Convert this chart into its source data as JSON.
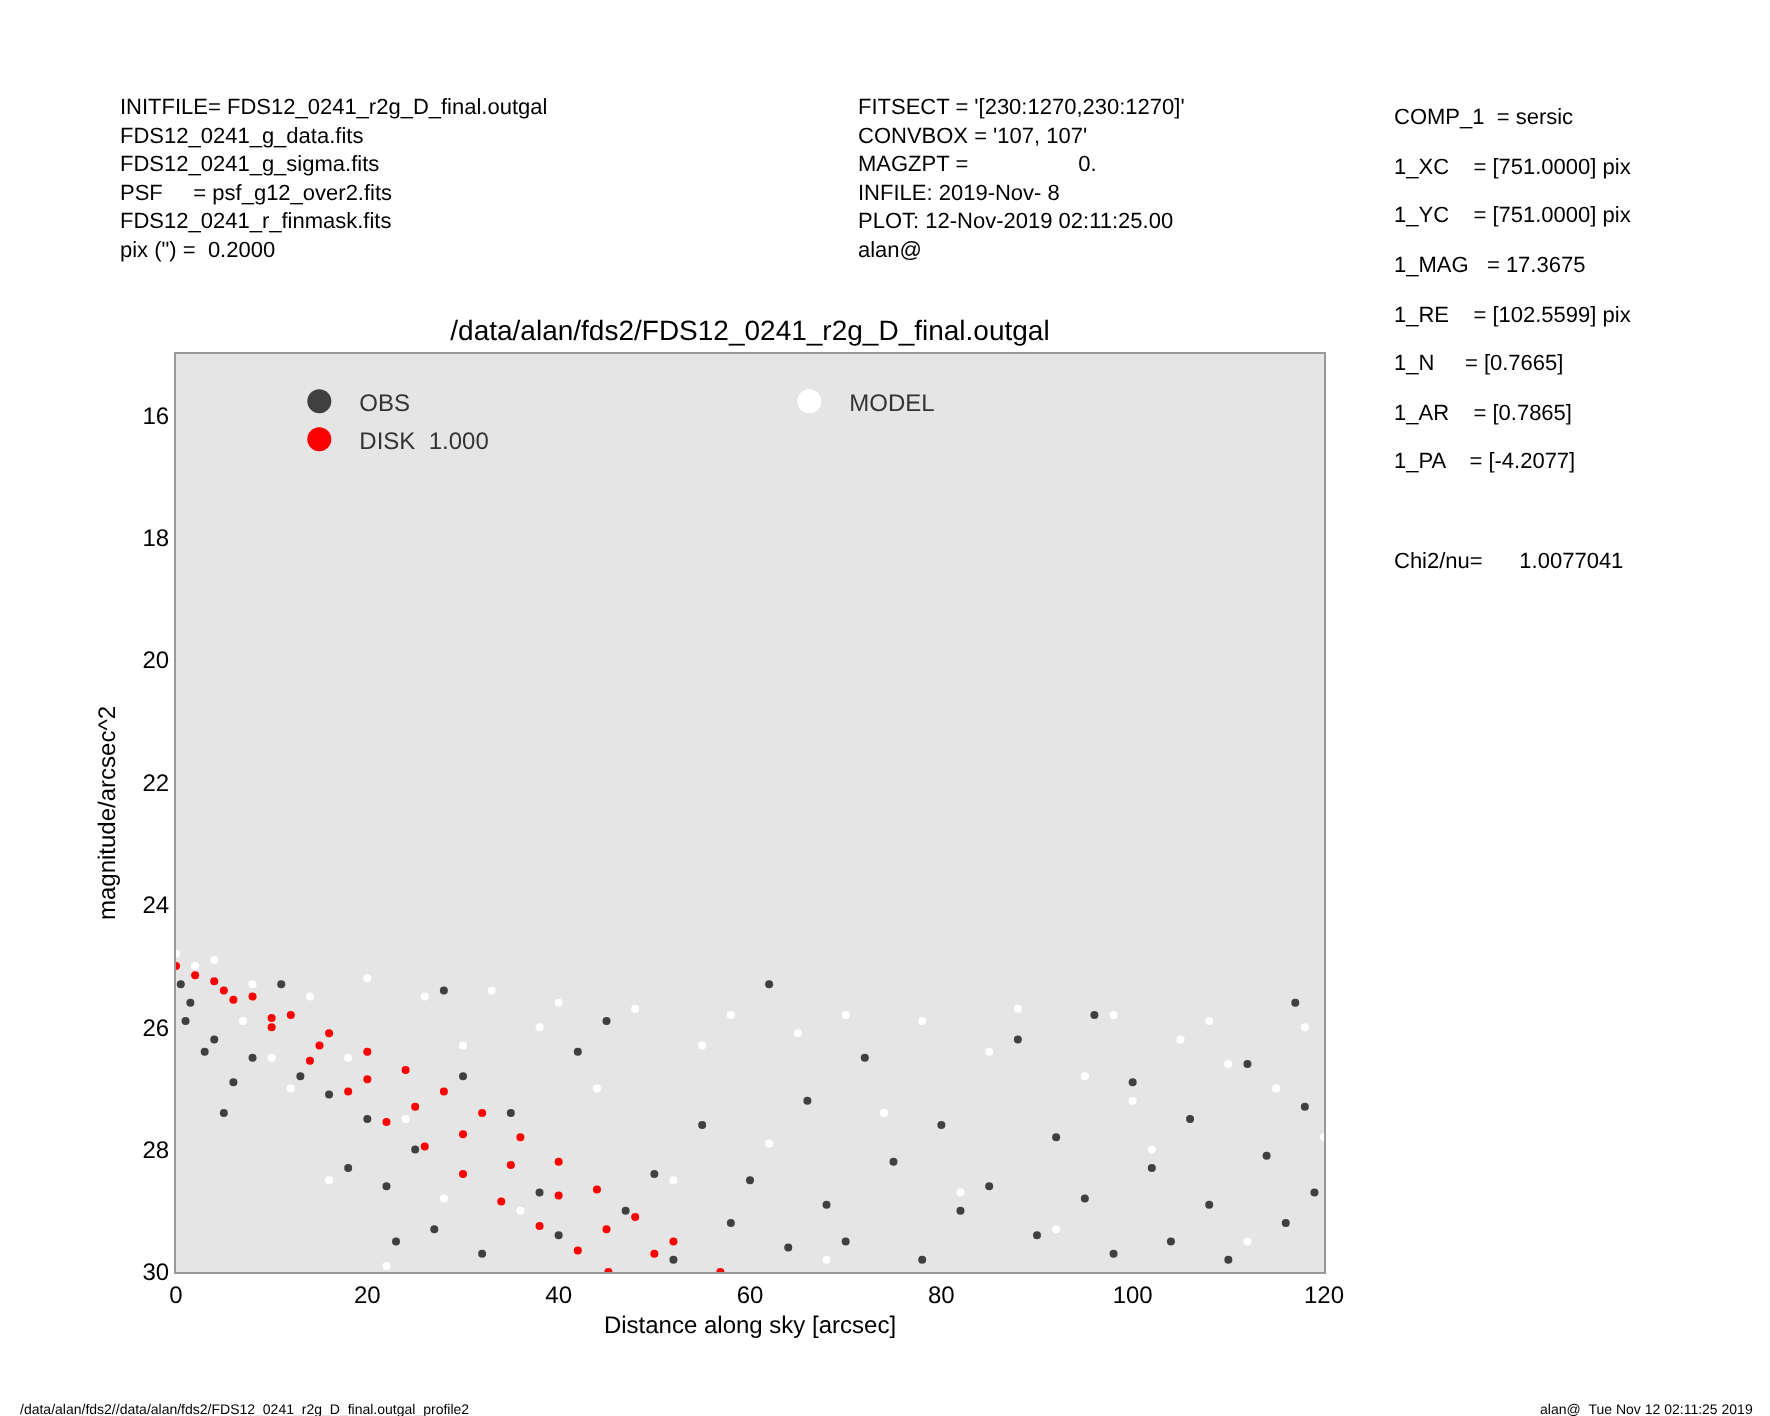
{
  "chart_data": {
    "type": "scatter",
    "title": "/data/alan/fds2/FDS12_0241_r2g_D_final.outgal",
    "xlabel": "Distance along sky [arcsec]",
    "ylabel": "magnitude/arcsec^2",
    "xlim": [
      0,
      120
    ],
    "xticks": [
      0,
      20,
      40,
      60,
      80,
      100,
      120
    ],
    "ylim": [
      30,
      15
    ],
    "yticks": [
      16,
      18,
      20,
      22,
      24,
      26,
      28,
      30
    ],
    "grid": false,
    "legend": "top left",
    "marker": "circle",
    "series": [
      {
        "name": "OBS",
        "color": "#404040",
        "x": [
          0.5,
          1.5,
          3,
          4,
          5,
          6,
          8,
          1,
          11,
          13,
          16,
          18,
          20,
          22,
          23,
          25,
          27,
          28,
          30,
          32,
          35,
          38,
          40,
          42,
          45,
          47,
          50,
          52,
          55,
          58,
          60,
          62,
          64,
          66,
          68,
          70,
          72,
          75,
          78,
          80,
          82,
          85,
          88,
          90,
          92,
          95,
          98,
          100,
          102,
          104,
          106,
          108,
          110,
          112,
          114,
          116,
          118,
          119,
          117,
          96
        ],
        "values": [
          25.3,
          25.6,
          26.4,
          26.2,
          27.4,
          26.9,
          26.5,
          25.9,
          25.3,
          26.8,
          27.1,
          28.3,
          27.5,
          28.6,
          29.5,
          28.0,
          29.3,
          25.4,
          26.8,
          29.7,
          27.4,
          28.7,
          29.4,
          26.4,
          25.9,
          29.0,
          28.4,
          29.8,
          27.6,
          29.2,
          28.5,
          25.3,
          29.6,
          27.2,
          28.9,
          29.5,
          26.5,
          28.2,
          29.8,
          27.6,
          29.0,
          28.6,
          26.2,
          29.4,
          27.8,
          28.8,
          29.7,
          26.9,
          28.3,
          29.5,
          27.5,
          28.9,
          29.8,
          26.6,
          28.1,
          29.2,
          27.3,
          28.7,
          25.6,
          25.8
        ]
      },
      {
        "name": "MODEL",
        "color": "#ffffff",
        "x": [
          0,
          2,
          4,
          7,
          8,
          10,
          12,
          14,
          16,
          18,
          20,
          22,
          24,
          26,
          28,
          30,
          33,
          36,
          38,
          40,
          44,
          48,
          52,
          55,
          58,
          62,
          65,
          68,
          70,
          74,
          78,
          82,
          85,
          88,
          92,
          95,
          98,
          102,
          105,
          108,
          112,
          115,
          118,
          120,
          110,
          100
        ],
        "values": [
          24.8,
          25.0,
          24.9,
          25.9,
          25.3,
          26.5,
          27.0,
          25.5,
          28.5,
          26.5,
          25.2,
          29.9,
          27.5,
          25.5,
          28.8,
          26.3,
          25.4,
          29.0,
          26.0,
          25.6,
          27.0,
          25.7,
          28.5,
          26.3,
          25.8,
          27.9,
          26.1,
          29.8,
          25.8,
          27.4,
          25.9,
          28.7,
          26.4,
          25.7,
          29.3,
          26.8,
          25.8,
          28.0,
          26.2,
          25.9,
          29.5,
          27.0,
          26.0,
          27.8,
          26.6,
          27.2
        ]
      },
      {
        "name": "DISK  1.000",
        "color": "#ff0000",
        "x": [
          0,
          4,
          8,
          12,
          16,
          20,
          24,
          28,
          32,
          36,
          40,
          44,
          48,
          52,
          56.9,
          2,
          6,
          10,
          14,
          18,
          22,
          26,
          30,
          34,
          38,
          42,
          45.2,
          5,
          10,
          15,
          20,
          25,
          30,
          35,
          40,
          45,
          50
        ],
        "values": [
          25.0,
          25.25,
          25.5,
          25.8,
          26.1,
          26.4,
          26.7,
          27.05,
          27.4,
          27.8,
          28.2,
          28.65,
          29.1,
          29.5,
          30,
          25.15,
          25.55,
          26.0,
          26.55,
          27.05,
          27.55,
          27.95,
          28.4,
          28.85,
          29.25,
          29.65,
          30,
          25.4,
          25.85,
          26.3,
          26.85,
          27.3,
          27.75,
          28.25,
          28.75,
          29.3,
          29.7
        ]
      }
    ],
    "annotations": [
      "INITFILE= FDS12_0241_r2g_D_final.outgal\nFDS12_0241_g_data.fits\nFDS12_0241_g_sigma.fits\nPSF     = psf_g12_over2.fits\nFDS12_0241_r_finmask.fits\npix (\") =  0.2000",
      "FITSECT = '[230:1270,230:1270]'\nCONVBOX = '107, 107'\nMAGZPT =                  0.\nINFILE: 2019-Nov- 8\nPLOT: 12-Nov-2019 02:11:25.00\nalan@",
      "COMP_1  = sersic",
      "1_XC    = [751.0000] pix",
      "1_YC    = [751.0000] pix",
      "1_MAG   = 17.3675",
      "1_RE    = [102.5599] pix",
      "1_N     = [0.7665]",
      "1_AR    = [0.7865]",
      "1_PA    = [-4.2077]",
      "Chi2/nu=      1.0077041",
      "/data/alan/fds2//data/alan/fds2/FDS12_0241_r2g_D_final.outgal_profile2",
      "alan@  Tue Nov 12 02:11:25 2019"
    ]
  }
}
